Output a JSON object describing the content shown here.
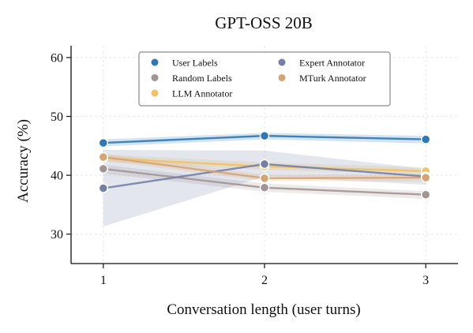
{
  "chart_data": {
    "type": "line",
    "title": "GPT-OSS 20B",
    "xlabel": "Conversation length (user turns)",
    "ylabel": "Accuracy (%)",
    "x": [
      1,
      2,
      3
    ],
    "xticks": [
      "1",
      "2",
      "3"
    ],
    "xlim": [
      0.8,
      3.2
    ],
    "ylim": [
      25,
      62
    ],
    "yticks": [
      "30",
      "40",
      "50",
      "60"
    ],
    "grid": true,
    "legend_position": "top-center",
    "series": [
      {
        "name": "User Labels",
        "color": "#2e78b7",
        "values": [
          45.5,
          46.7,
          46.1
        ],
        "band_low": [
          44.9,
          46.1,
          45.4
        ],
        "band_high": [
          46.1,
          47.2,
          46.7
        ]
      },
      {
        "name": "Random Labels",
        "color": "#a49595",
        "values": [
          41.1,
          37.9,
          36.7
        ],
        "band_low": [
          40.3,
          37.2,
          36.0
        ],
        "band_high": [
          41.8,
          38.6,
          37.3
        ]
      },
      {
        "name": "LLM Annotator",
        "color": "#f2c160",
        "values": [
          42.9,
          41.5,
          40.7
        ],
        "band_low": [
          42.3,
          40.9,
          40.2
        ],
        "band_high": [
          43.5,
          42.2,
          41.3
        ]
      },
      {
        "name": "Expert Annotator",
        "color": "#7480a6",
        "values": [
          37.8,
          41.9,
          39.8
        ],
        "band_low": [
          31.3,
          39.8,
          38.4
        ],
        "band_high": [
          44.3,
          44.2,
          41.1
        ]
      },
      {
        "name": "MTurk Annotator",
        "color": "#d6a374",
        "values": [
          43.1,
          39.5,
          39.6
        ],
        "band_low": [
          42.5,
          39.0,
          39.0
        ],
        "band_high": [
          43.7,
          40.1,
          40.2
        ]
      }
    ]
  }
}
